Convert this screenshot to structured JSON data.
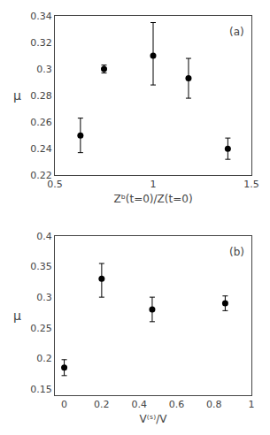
{
  "chart_data": [
    {
      "type": "scatter",
      "x": [
        0.63,
        0.75,
        1.0,
        1.18,
        1.38
      ],
      "values": [
        0.25,
        0.3,
        0.31,
        0.293,
        0.24
      ],
      "yerr_lo": [
        0.013,
        0.003,
        0.022,
        0.015,
        0.008
      ],
      "yerr_hi": [
        0.013,
        0.003,
        0.025,
        0.015,
        0.008
      ],
      "xlim": [
        0.5,
        1.5
      ],
      "ylim": [
        0.22,
        0.34
      ],
      "xticks": [
        0.5,
        1,
        1.5
      ],
      "yticks": [
        0.22,
        0.24,
        0.26,
        0.28,
        0.3,
        0.32,
        0.34
      ],
      "xlabel": "Zᵇ(t=0)/Z(t=0)",
      "ylabel": "μ",
      "annotations": [
        "(a)"
      ],
      "color": "black",
      "marker": "circle",
      "grid": false
    },
    {
      "type": "scatter",
      "x": [
        0.0,
        0.2,
        0.47,
        0.86
      ],
      "values": [
        0.185,
        0.33,
        0.28,
        0.29
      ],
      "yerr_lo": [
        0.013,
        0.03,
        0.02,
        0.012
      ],
      "yerr_hi": [
        0.013,
        0.025,
        0.02,
        0.012
      ],
      "xlim": [
        -0.05,
        1.0
      ],
      "ylim": [
        0.14,
        0.4
      ],
      "xticks": [
        0,
        0.2,
        0.4,
        0.6,
        0.8,
        1
      ],
      "yticks": [
        0.15,
        0.2,
        0.25,
        0.3,
        0.35,
        0.4
      ],
      "xlabel": "V⁽ˢ⁾/V",
      "ylabel": "μ",
      "annotations": [
        "(b)"
      ],
      "color": "black",
      "marker": "circle",
      "grid": false
    }
  ]
}
